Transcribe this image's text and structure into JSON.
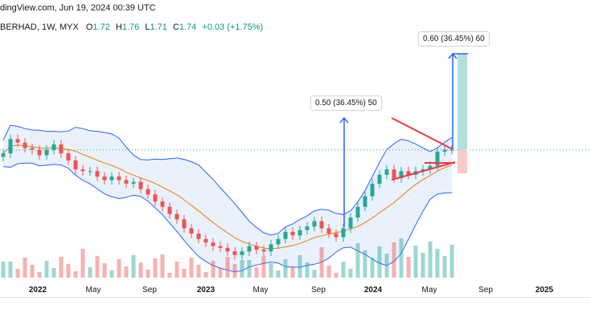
{
  "header": {
    "source_text": "dingView.com, Jun 19, 2024 00:39 UTC"
  },
  "symbol": {
    "name": "BERHAD, 1W, MYX",
    "open_label": "O",
    "open": "1.72",
    "high_label": "H",
    "high": "1.76",
    "low_label": "L",
    "low": "1.71",
    "close_label": "C",
    "close": "1.74",
    "change": "+0.03 (+1.75%)"
  },
  "annotations": {
    "first_move": "0.50 (36.45%) 50",
    "target_move": "0.60 (36.45%) 60"
  },
  "colors": {
    "up": "#26a69a",
    "down": "#ef5350",
    "band": "#2962ff",
    "band_fill": "#e3eefb",
    "ma": "#f57c00",
    "arrow": "#2962ff",
    "triangle": "#f23645",
    "target_zone": "#b2dfdb",
    "stop_zone": "#f8c9c9"
  },
  "chart_data": {
    "type": "candlestick",
    "timeframe": "1W",
    "x_tick_labels": [
      "2022",
      "May",
      "Sep",
      "2023",
      "May",
      "Sep",
      "2024",
      "May",
      "Sep",
      "2025"
    ],
    "bold_ticks": [
      "2022",
      "2023",
      "2024",
      "2025"
    ],
    "overlays": [
      "Bollinger Bands",
      "moving average",
      "volume"
    ],
    "series_close": [
      1.72,
      1.8,
      1.78,
      1.75,
      1.74,
      1.71,
      1.74,
      1.77,
      1.72,
      1.68,
      1.63,
      1.62,
      1.62,
      1.59,
      1.57,
      1.59,
      1.57,
      1.55,
      1.56,
      1.52,
      1.49,
      1.45,
      1.42,
      1.38,
      1.35,
      1.3,
      1.27,
      1.24,
      1.22,
      1.2,
      1.19,
      1.17,
      1.15,
      1.17,
      1.2,
      1.18,
      1.17,
      1.21,
      1.24,
      1.28,
      1.26,
      1.29,
      1.31,
      1.34,
      1.3,
      1.27,
      1.25,
      1.3,
      1.36,
      1.42,
      1.48,
      1.55,
      1.6,
      1.63,
      1.58,
      1.62,
      1.6,
      1.62,
      1.63,
      1.65,
      1.73,
      1.74,
      1.74
    ],
    "last_close": 1.74,
    "target_projection": "0.60 (36.45%) 60",
    "prior_move": "0.50 (36.45%) 50"
  }
}
